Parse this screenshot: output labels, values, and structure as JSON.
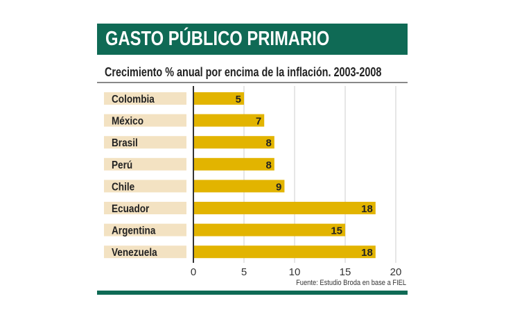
{
  "chart_data": {
    "type": "bar",
    "orientation": "horizontal",
    "title": "GASTO PÚBLICO PRIMARIO",
    "subtitle": "Crecimiento % anual por encima de la inflación. 2003-2008",
    "categories": [
      "Colombia",
      "México",
      "Brasil",
      "Perú",
      "Chile",
      "Ecuador",
      "Argentina",
      "Venezuela"
    ],
    "values": [
      5,
      7,
      8,
      8,
      9,
      18,
      15,
      18
    ],
    "xlim": [
      0,
      20
    ],
    "xticks": [
      0,
      5,
      10,
      15,
      20
    ],
    "grid": true,
    "source": "Fuente: Estudio Broda en base a FIEL",
    "colors": {
      "bar": "#e2b400",
      "label_bg": "#f3e2c2",
      "header": "#0f6a55"
    }
  }
}
